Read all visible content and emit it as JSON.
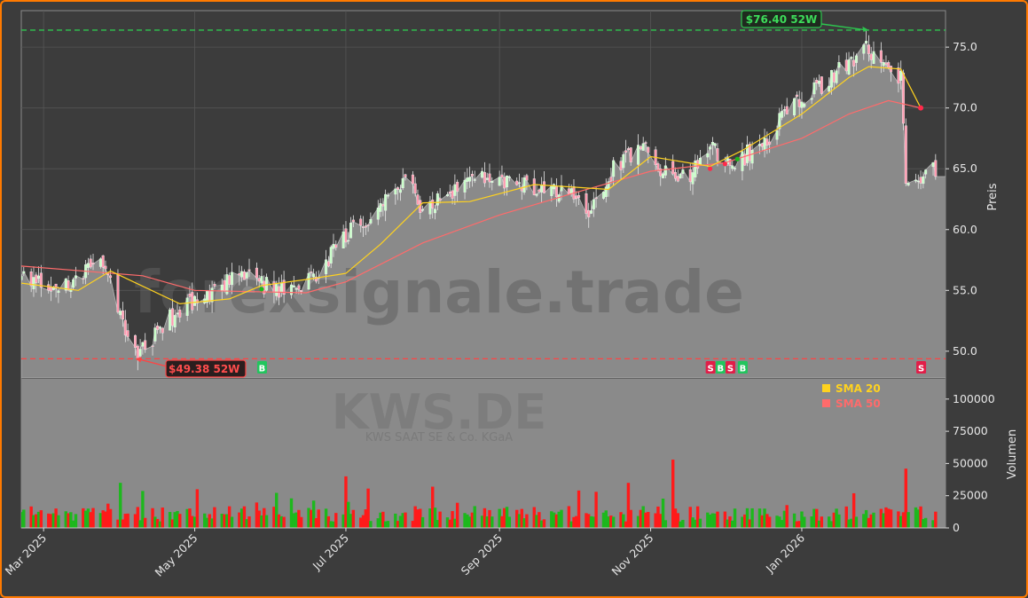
{
  "chart_data": {
    "type": "candlestick",
    "ticker": "KWS.DE",
    "company": "KWS SAAT SE & Co. KGaA",
    "watermark": "forexsignale.trade",
    "ylabel": "Preis",
    "volume_label": "Volumen",
    "ylim": [
      47.8,
      78.0
    ],
    "yticks": [
      "50.0",
      "55.0",
      "60.0",
      "65.0",
      "70.0",
      "75.0"
    ],
    "ytick_values": [
      50,
      55,
      60,
      65,
      70,
      75
    ],
    "vol_ylim": [
      0,
      115000
    ],
    "vol_ticks": [
      "0",
      "25000",
      "50000",
      "75000",
      "100000"
    ],
    "vol_tick_values": [
      0,
      25000,
      50000,
      75000,
      100000
    ],
    "x_range": [
      "2025-02-20",
      "2026-02-28"
    ],
    "x_ticks": [
      {
        "label": "Mar 2025",
        "date": "2025-03-01"
      },
      {
        "label": "May 2025",
        "date": "2025-05-01"
      },
      {
        "label": "Jul 2025",
        "date": "2025-07-01"
      },
      {
        "label": "Sep 2025",
        "date": "2025-09-01"
      },
      {
        "label": "Nov 2025",
        "date": "2025-11-01"
      },
      {
        "label": "Jan 2026",
        "date": "2026-01-01"
      }
    ],
    "high_52w": {
      "value": 76.4,
      "label": "$76.40 52W",
      "date": "2026-01-28"
    },
    "low_52w": {
      "value": 49.38,
      "label": "$49.38 52W",
      "date": "2025-04-07"
    },
    "legend": [
      {
        "label": "SMA 20",
        "color": "#ffd21f"
      },
      {
        "label": "SMA 50",
        "color": "#ff6b6b"
      }
    ],
    "close_anchors": [
      [
        "2025-02-20",
        55.8
      ],
      [
        "2025-03-10",
        55.2
      ],
      [
        "2025-03-25",
        57.6
      ],
      [
        "2025-04-07",
        49.6
      ],
      [
        "2025-04-20",
        52.5
      ],
      [
        "2025-05-05",
        54.6
      ],
      [
        "2025-05-20",
        56.2
      ],
      [
        "2025-06-05",
        54.8
      ],
      [
        "2025-06-20",
        56.4
      ],
      [
        "2025-07-01",
        59.5
      ],
      [
        "2025-07-15",
        62.0
      ],
      [
        "2025-07-28",
        64.2
      ],
      [
        "2025-08-01",
        61.5
      ],
      [
        "2025-08-15",
        63.5
      ],
      [
        "2025-08-28",
        64.3
      ],
      [
        "2025-09-15",
        63.6
      ],
      [
        "2025-10-01",
        63.0
      ],
      [
        "2025-10-07",
        60.9
      ],
      [
        "2025-10-15",
        64.6
      ],
      [
        "2025-10-30",
        67.0
      ],
      [
        "2025-11-05",
        65.0
      ],
      [
        "2025-11-15",
        64.2
      ],
      [
        "2025-11-25",
        66.8
      ],
      [
        "2025-12-05",
        65.5
      ],
      [
        "2025-12-18",
        67.4
      ],
      [
        "2025-12-28",
        70.2
      ],
      [
        "2026-01-12",
        72.3
      ],
      [
        "2026-01-28",
        75.0
      ],
      [
        "2026-02-05",
        72.6
      ],
      [
        "2026-02-10",
        72.8
      ],
      [
        "2026-02-12",
        63.5
      ],
      [
        "2026-02-20",
        64.9
      ],
      [
        "2026-02-24",
        64.8
      ]
    ],
    "sma20": [
      [
        "2025-02-20",
        55.6
      ],
      [
        "2025-03-15",
        55.0
      ],
      [
        "2025-03-28",
        56.6
      ],
      [
        "2025-04-25",
        53.9
      ],
      [
        "2025-05-15",
        54.3
      ],
      [
        "2025-05-28",
        55.4
      ],
      [
        "2025-06-15",
        55.9
      ],
      [
        "2025-07-01",
        56.4
      ],
      [
        "2025-07-15",
        58.8
      ],
      [
        "2025-08-01",
        62.2
      ],
      [
        "2025-08-20",
        62.3
      ],
      [
        "2025-09-15",
        63.7
      ],
      [
        "2025-10-15",
        63.3
      ],
      [
        "2025-11-01",
        66.0
      ],
      [
        "2025-11-25",
        65.2
      ],
      [
        "2025-12-08",
        66.5
      ],
      [
        "2026-01-01",
        69.5
      ],
      [
        "2026-01-20",
        72.5
      ],
      [
        "2026-01-28",
        73.4
      ],
      [
        "2026-02-10",
        73.2
      ],
      [
        "2026-02-18",
        70.0
      ]
    ],
    "sma50": [
      [
        "2025-02-20",
        57.0
      ],
      [
        "2025-04-10",
        56.2
      ],
      [
        "2025-05-01",
        55.0
      ],
      [
        "2025-06-15",
        54.8
      ],
      [
        "2025-07-01",
        55.7
      ],
      [
        "2025-08-01",
        58.9
      ],
      [
        "2025-09-01",
        61.2
      ],
      [
        "2025-10-01",
        63.0
      ],
      [
        "2025-11-01",
        64.8
      ],
      [
        "2025-12-01",
        65.5
      ],
      [
        "2026-01-01",
        67.5
      ],
      [
        "2026-01-20",
        69.5
      ],
      [
        "2026-02-05",
        70.6
      ],
      [
        "2026-02-18",
        70.0
      ]
    ],
    "signals": [
      {
        "label": "B",
        "type": "buy",
        "date": "2025-05-28"
      },
      {
        "label": "S",
        "type": "sell",
        "date": "2025-11-25"
      },
      {
        "label": "B",
        "type": "buy",
        "date": "2025-11-29"
      },
      {
        "label": "S",
        "type": "sell",
        "date": "2025-12-03"
      },
      {
        "label": "B",
        "type": "buy",
        "date": "2025-12-08"
      },
      {
        "label": "S",
        "type": "sell",
        "date": "2026-02-18"
      }
    ],
    "colors": {
      "up": "#1db81d",
      "down": "#ff1a1a",
      "high_line": "#2ec54f",
      "low_line": "#ff4444",
      "area": "#8a8a8a"
    }
  }
}
